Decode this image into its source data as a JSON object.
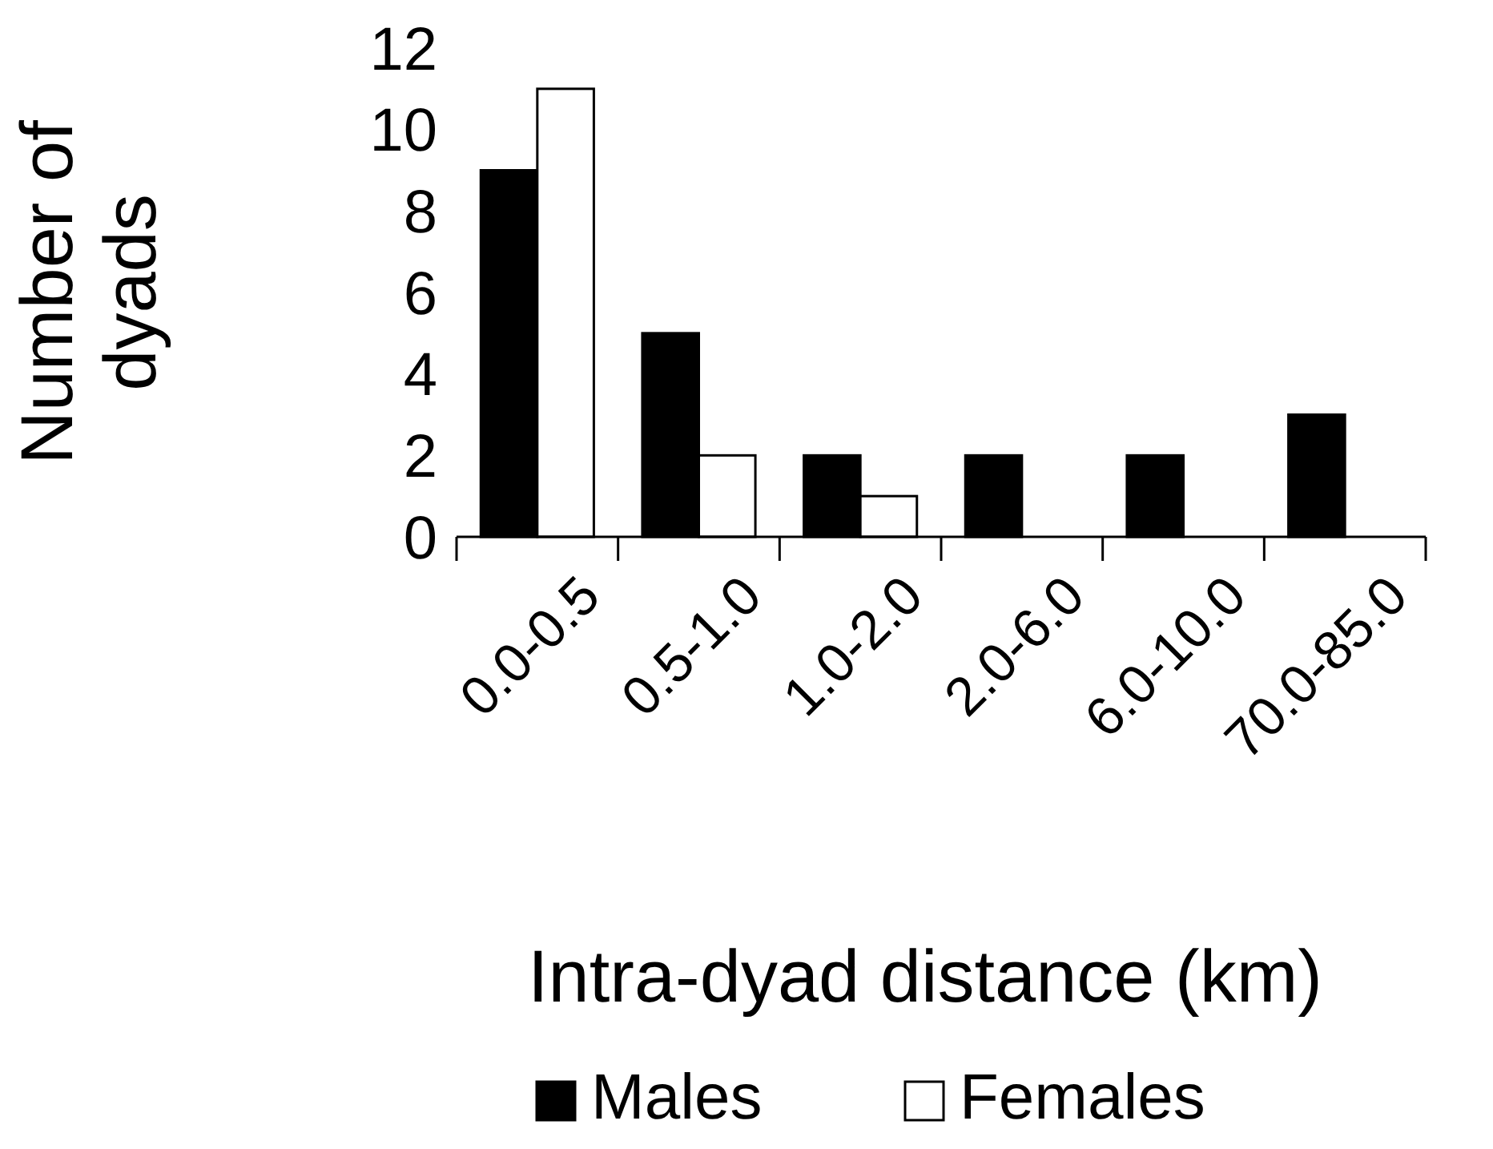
{
  "chart_data": {
    "type": "bar",
    "xlabel": "Intra-dyad distance (km)",
    "ylabel": "Number of dyads",
    "categories": [
      "0.0-0.5",
      "0.5-1.0",
      "1.0-2.0",
      "2.0-6.0",
      "6.0-10.0",
      "70.0-85.0"
    ],
    "series": [
      {
        "name": "Males",
        "color": "#000000",
        "values": [
          9,
          5,
          2,
          2,
          2,
          3
        ]
      },
      {
        "name": "Females",
        "color": "#ffffff",
        "values": [
          11,
          2,
          1,
          0,
          0,
          0
        ]
      }
    ],
    "ylim": [
      0,
      12
    ],
    "yticks": [
      0,
      2,
      4,
      6,
      8,
      10,
      12
    ],
    "grid": false,
    "legend": "bottom"
  }
}
